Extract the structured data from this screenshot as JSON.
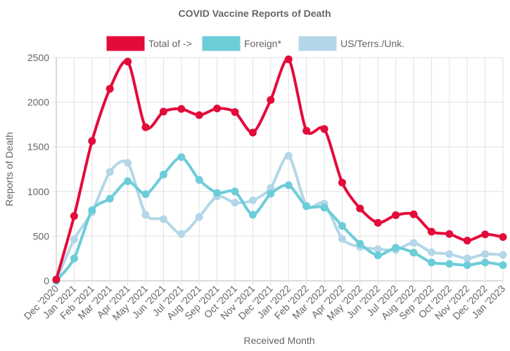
{
  "chart_data": {
    "type": "line",
    "title": "COVID Vaccine Reports of Death",
    "xlabel": "Received Month",
    "ylabel": "Reports of Death",
    "ylim": [
      0,
      2500
    ],
    "yticks": [
      "0",
      "500",
      "1000",
      "1500",
      "2000",
      "2500"
    ],
    "grid": true,
    "legend_position": "top",
    "categories": [
      "Dec '2020",
      "Jan '2021",
      "Feb '2021",
      "Mar '2021",
      "Apr '2021",
      "May '2021",
      "Jun '2021",
      "Jul '2021",
      "Aug '2021",
      "Sep '2021",
      "Oct '2021",
      "Nov '2021",
      "Dec '2021",
      "Jan '2022",
      "Feb '2022",
      "Mar '2022",
      "Apr '2022",
      "May '2022",
      "Jun '2022",
      "Jul '2022",
      "Aug '2022",
      "Sep '2022",
      "Oct '2022",
      "Nov '2022",
      "Dec '2022",
      "Jan '2023"
    ],
    "series": [
      {
        "name": "Total of ->",
        "color": "#e30b3a",
        "values": [
          15,
          725,
          1565,
          2150,
          2455,
          1720,
          1895,
          1925,
          1855,
          1930,
          1890,
          1660,
          2025,
          2480,
          1680,
          1700,
          1100,
          810,
          650,
          735,
          745,
          550,
          525,
          450,
          520,
          490
        ]
      },
      {
        "name": "Foreign*",
        "color": "#6ccdd9",
        "values": [
          0,
          250,
          790,
          920,
          1115,
          970,
          1190,
          1385,
          1130,
          985,
          1000,
          740,
          975,
          1070,
          835,
          820,
          615,
          415,
          285,
          370,
          315,
          205,
          190,
          175,
          205,
          175
        ]
      },
      {
        "name": "US/Terrs./Unk.",
        "color": "#b3d7e8",
        "values": [
          0,
          465,
          770,
          1220,
          1320,
          740,
          690,
          525,
          715,
          945,
          875,
          900,
          1040,
          1400,
          840,
          865,
          470,
          380,
          355,
          345,
          425,
          320,
          300,
          250,
          300,
          290
        ]
      }
    ]
  }
}
